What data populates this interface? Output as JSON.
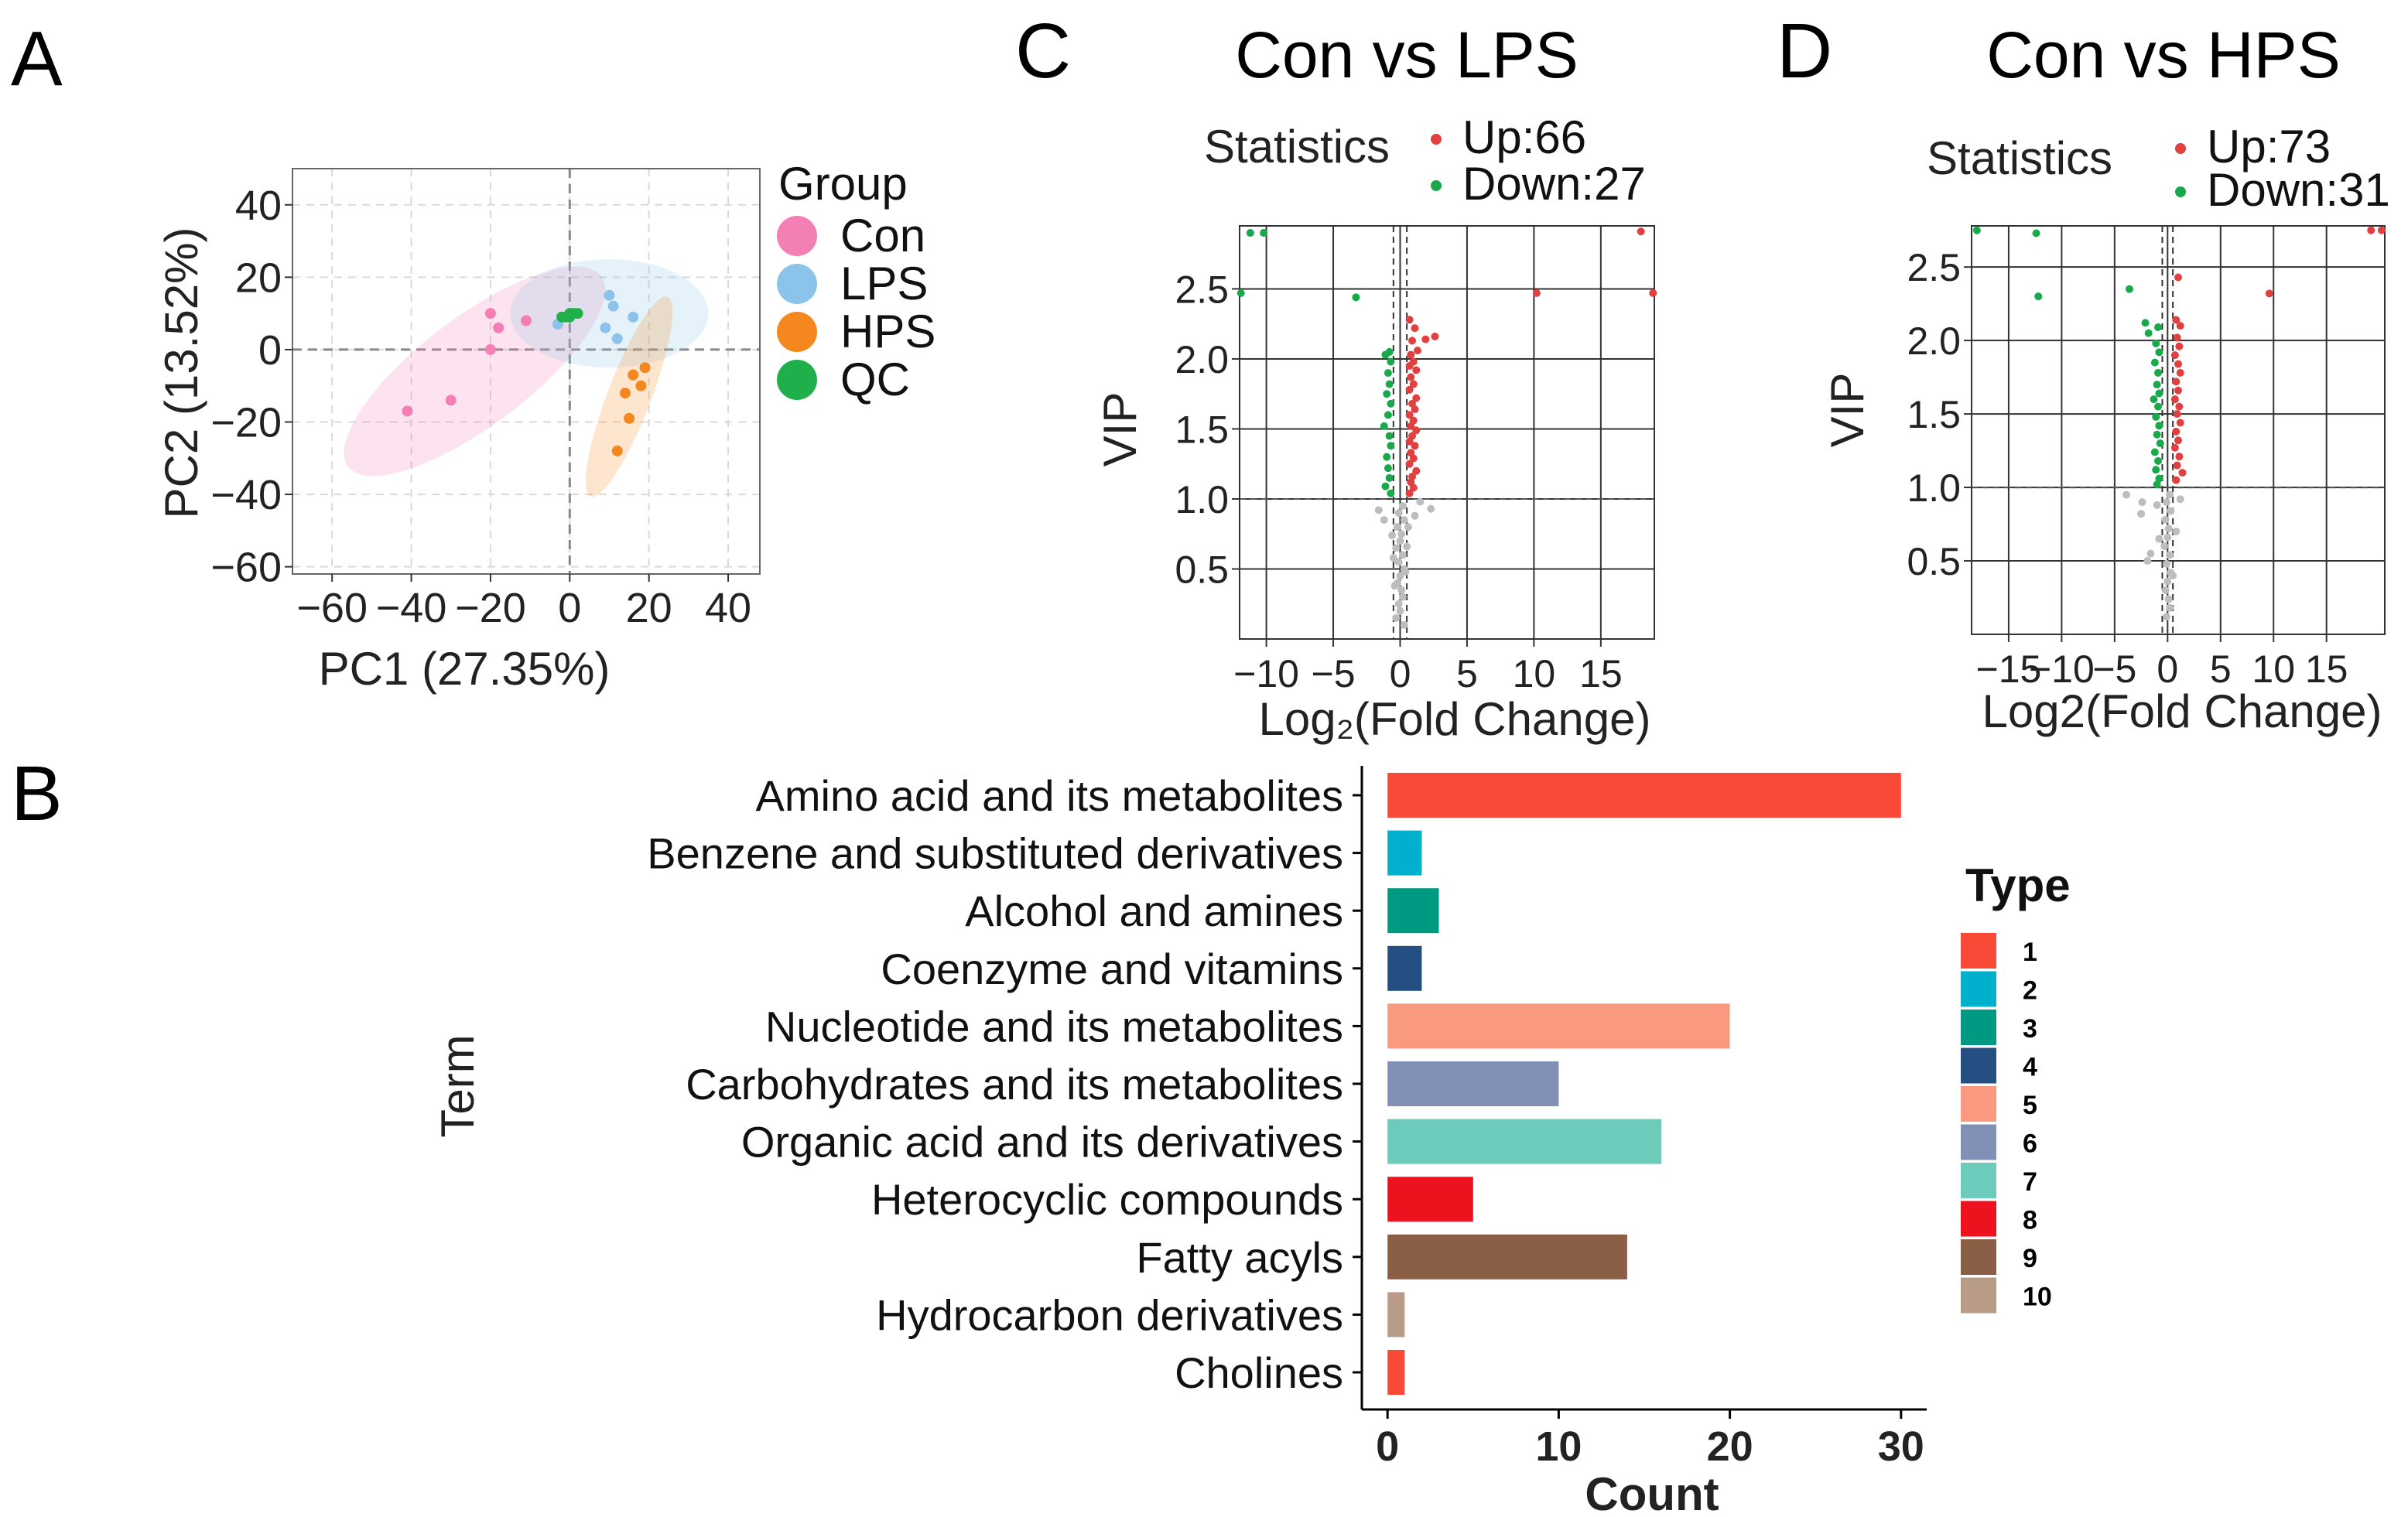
{
  "figure": {
    "panel_labels": {
      "a": "A",
      "b": "B",
      "c": "C",
      "d": "D"
    }
  },
  "colors": {
    "con": "#f37fb5",
    "lps": "#8cc3ea",
    "hps": "#f5871f",
    "qc": "#1fb04b",
    "up": "#e0403f",
    "down": "#1aa94a",
    "ns": "#bdbdbd"
  },
  "chart_data": [
    {
      "id": "pca",
      "type": "scatter",
      "xlabel": "PC1  (27.35%)",
      "ylabel": "PC2  (13.52%)",
      "xlim": [
        -70,
        48
      ],
      "ylim": [
        -62,
        50
      ],
      "xticks": [
        -60,
        -40,
        -20,
        0,
        20,
        40
      ],
      "xtick_labels": [
        "−60",
        "−40",
        "−20",
        "0",
        "20",
        "40"
      ],
      "yticks": [
        40,
        20,
        0,
        -20,
        -40,
        -60
      ],
      "ytick_labels": [
        "40",
        "20",
        "0",
        "−20",
        "−40",
        "−60"
      ],
      "legend": {
        "title": "Group",
        "position": "right",
        "entries": [
          {
            "label": "Con",
            "color": "#f37fb5"
          },
          {
            "label": "LPS",
            "color": "#8cc3ea"
          },
          {
            "label": "HPS",
            "color": "#f5871f"
          },
          {
            "label": "QC",
            "color": "#1fb04b"
          }
        ]
      },
      "ellipses": [
        {
          "group": "Con",
          "cx": -24,
          "cy": -6,
          "rx": 40,
          "ry": 15,
          "angle_deg": 37,
          "color": "#f37fb5"
        },
        {
          "group": "LPS",
          "cx": 10,
          "cy": 10,
          "rx": 25,
          "ry": 15,
          "angle_deg": 0,
          "color": "#8cc3ea"
        },
        {
          "group": "HPS",
          "cx": 15,
          "cy": -13,
          "rx": 27,
          "ry": 6,
          "angle_deg": 69,
          "color": "#f5871f"
        }
      ],
      "series": [
        {
          "name": "Con",
          "color": "#f37fb5",
          "points": [
            [
              -20,
              10
            ],
            [
              -18,
              6
            ],
            [
              -11,
              8
            ],
            [
              -20,
              0
            ],
            [
              -30,
              -14
            ],
            [
              -41,
              -17
            ]
          ]
        },
        {
          "name": "LPS",
          "color": "#8cc3ea",
          "points": [
            [
              10,
              15
            ],
            [
              11,
              12
            ],
            [
              16,
              9
            ],
            [
              -3,
              7
            ],
            [
              9,
              6
            ],
            [
              12,
              3
            ]
          ]
        },
        {
          "name": "HPS",
          "color": "#f5871f",
          "points": [
            [
              19,
              -5
            ],
            [
              16,
              -7
            ],
            [
              18,
              -10
            ],
            [
              14,
              -12
            ],
            [
              15,
              -19
            ],
            [
              12,
              -28
            ]
          ]
        },
        {
          "name": "QC",
          "color": "#1fb04b",
          "points": [
            [
              -1,
              9
            ],
            [
              0,
              10
            ],
            [
              1,
              10
            ],
            [
              -2,
              9
            ],
            [
              0,
              9
            ],
            [
              2,
              10
            ]
          ]
        }
      ]
    },
    {
      "id": "volcano_lps",
      "type": "scatter",
      "title": "Con vs LPS",
      "xlabel": "Log₂(Fold  Change)",
      "ylabel": "VIP",
      "xlim": [
        -12,
        19
      ],
      "ylim": [
        0,
        2.95
      ],
      "xticks": [
        -10,
        -5,
        0,
        5,
        10,
        15
      ],
      "xtick_labels": [
        "−10",
        "−5",
        "0",
        "5",
        "10",
        "15"
      ],
      "yticks": [
        0.5,
        1.0,
        1.5,
        2.0,
        2.5
      ],
      "ytick_labels": [
        "0.5",
        "1.0",
        "1.5",
        "2.0",
        "2.5"
      ],
      "thresholds": {
        "vip": 1.0,
        "log2fc": [
          -0.5,
          0.5
        ]
      },
      "legend": {
        "title": "Statistics",
        "position": "top",
        "entries": [
          {
            "label": "Up:66",
            "color": "#e0403f"
          },
          {
            "label": "Down:27",
            "color": "#1aa94a"
          }
        ]
      },
      "series": [
        {
          "name": "Up",
          "color": "#e0403f",
          "points": [
            [
              18,
              2.91
            ],
            [
              18.9,
              2.47
            ],
            [
              10.2,
              2.47
            ],
            [
              0.7,
              2.28
            ],
            [
              1.1,
              2.22
            ],
            [
              2.6,
              2.16
            ],
            [
              1.9,
              2.14
            ],
            [
              0.9,
              2.13
            ],
            [
              1.3,
              2.06
            ],
            [
              0.8,
              2.03
            ],
            [
              1.0,
              1.98
            ],
            [
              0.7,
              1.95
            ],
            [
              1.2,
              1.92
            ],
            [
              0.8,
              1.87
            ],
            [
              1.0,
              1.82
            ],
            [
              0.7,
              1.78
            ],
            [
              1.2,
              1.72
            ],
            [
              0.9,
              1.68
            ],
            [
              1.1,
              1.64
            ],
            [
              0.7,
              1.6
            ],
            [
              1.0,
              1.56
            ],
            [
              0.8,
              1.52
            ],
            [
              1.2,
              1.49
            ],
            [
              0.9,
              1.45
            ],
            [
              0.7,
              1.41
            ],
            [
              1.1,
              1.38
            ],
            [
              0.8,
              1.33
            ],
            [
              1.0,
              1.29
            ],
            [
              0.7,
              1.25
            ],
            [
              1.2,
              1.2
            ],
            [
              0.9,
              1.16
            ],
            [
              0.8,
              1.12
            ],
            [
              1.0,
              1.08
            ],
            [
              0.7,
              1.04
            ]
          ]
        },
        {
          "name": "Down",
          "color": "#1aa94a",
          "points": [
            [
              -11.2,
              2.9
            ],
            [
              -10.2,
              2.9
            ],
            [
              -11.9,
              2.47
            ],
            [
              -3.3,
              2.44
            ],
            [
              -0.8,
              2.05
            ],
            [
              -1.1,
              2.03
            ],
            [
              -0.7,
              1.98
            ],
            [
              -0.9,
              1.9
            ],
            [
              -0.8,
              1.82
            ],
            [
              -1.0,
              1.75
            ],
            [
              -0.7,
              1.68
            ],
            [
              -0.9,
              1.6
            ],
            [
              -1.2,
              1.52
            ],
            [
              -0.8,
              1.45
            ],
            [
              -0.7,
              1.38
            ],
            [
              -1.0,
              1.3
            ],
            [
              -0.9,
              1.22
            ],
            [
              -0.8,
              1.15
            ],
            [
              -1.1,
              1.09
            ],
            [
              -0.7,
              1.04
            ]
          ]
        },
        {
          "name": "Not significant",
          "color": "#bdbdbd",
          "points": [
            [
              0.2,
              0.95
            ],
            [
              -0.1,
              0.9
            ],
            [
              0.3,
              0.85
            ],
            [
              -0.2,
              0.8
            ],
            [
              0.1,
              0.75
            ],
            [
              0.0,
              0.7
            ],
            [
              -0.3,
              0.65
            ],
            [
              0.2,
              0.6
            ],
            [
              -0.1,
              0.55
            ],
            [
              0.3,
              0.5
            ],
            [
              0.0,
              0.45
            ],
            [
              -0.2,
              0.4
            ],
            [
              0.1,
              0.35
            ],
            [
              0.2,
              0.3
            ],
            [
              -0.1,
              0.25
            ],
            [
              0.0,
              0.2
            ],
            [
              -0.3,
              0.15
            ],
            [
              0.3,
              0.1
            ],
            [
              1.5,
              0.98
            ],
            [
              2.3,
              0.93
            ],
            [
              -1.6,
              0.92
            ],
            [
              1.1,
              0.88
            ],
            [
              -1.2,
              0.85
            ],
            [
              0.6,
              0.8
            ],
            [
              -0.6,
              0.74
            ],
            [
              0.5,
              0.66
            ],
            [
              -0.5,
              0.58
            ],
            [
              0.4,
              0.48
            ],
            [
              -0.4,
              0.38
            ]
          ]
        }
      ]
    },
    {
      "id": "volcano_hps",
      "type": "scatter",
      "title": "Con vs HPS",
      "xlabel": "Log2(Fold  Change)",
      "ylabel": "VIP",
      "xlim": [
        -18.5,
        20.5
      ],
      "ylim": [
        0,
        2.78
      ],
      "xticks": [
        -15,
        -10,
        -5,
        0,
        5,
        10,
        15
      ],
      "xtick_labels": [
        "−15",
        "−10",
        "−5",
        "0",
        "5",
        "10",
        "15"
      ],
      "yticks": [
        0.5,
        1.0,
        1.5,
        2.0,
        2.5
      ],
      "ytick_labels": [
        "0.5",
        "1.0",
        "1.5",
        "2.0",
        "2.5"
      ],
      "thresholds": {
        "vip": 1.0,
        "log2fc": [
          -0.5,
          0.5
        ]
      },
      "legend": {
        "title": "Statistics",
        "position": "top",
        "entries": [
          {
            "label": "Up:73",
            "color": "#e0403f"
          },
          {
            "label": "Down:31",
            "color": "#1aa94a"
          }
        ]
      },
      "series": [
        {
          "name": "Up",
          "color": "#e0403f",
          "points": [
            [
              19.2,
              2.75
            ],
            [
              20.2,
              2.75
            ],
            [
              9.6,
              2.32
            ],
            [
              1.0,
              2.43
            ],
            [
              0.8,
              2.14
            ],
            [
              1.2,
              2.1
            ],
            [
              0.9,
              2.02
            ],
            [
              1.1,
              1.96
            ],
            [
              0.7,
              1.9
            ],
            [
              1.0,
              1.84
            ],
            [
              1.2,
              1.78
            ],
            [
              0.8,
              1.72
            ],
            [
              1.0,
              1.66
            ],
            [
              0.7,
              1.6
            ],
            [
              1.1,
              1.55
            ],
            [
              0.9,
              1.5
            ],
            [
              1.2,
              1.44
            ],
            [
              0.8,
              1.38
            ],
            [
              1.0,
              1.32
            ],
            [
              0.7,
              1.27
            ],
            [
              1.1,
              1.21
            ],
            [
              0.9,
              1.15
            ],
            [
              1.4,
              1.1
            ],
            [
              0.8,
              1.05
            ]
          ]
        },
        {
          "name": "Down",
          "color": "#1aa94a",
          "points": [
            [
              -18.0,
              2.75
            ],
            [
              -12.4,
              2.73
            ],
            [
              -12.2,
              2.3
            ],
            [
              -3.6,
              2.35
            ],
            [
              -2.1,
              2.12
            ],
            [
              -1.8,
              2.05
            ],
            [
              -0.9,
              2.09
            ],
            [
              -1.1,
              1.98
            ],
            [
              -0.8,
              1.92
            ],
            [
              -1.2,
              1.85
            ],
            [
              -0.9,
              1.78
            ],
            [
              -1.0,
              1.7
            ],
            [
              -0.8,
              1.64
            ],
            [
              -1.3,
              1.6
            ],
            [
              -0.9,
              1.55
            ],
            [
              -1.1,
              1.48
            ],
            [
              -0.8,
              1.42
            ],
            [
              -1.0,
              1.36
            ],
            [
              -0.7,
              1.3
            ],
            [
              -1.2,
              1.24
            ],
            [
              -0.9,
              1.18
            ],
            [
              -1.1,
              1.12
            ],
            [
              -0.8,
              1.06
            ],
            [
              -1.0,
              1.02
            ]
          ]
        },
        {
          "name": "Not significant",
          "color": "#bdbdbd",
          "points": [
            [
              -3.9,
              0.95
            ],
            [
              -2.4,
              0.9
            ],
            [
              -2.5,
              0.82
            ],
            [
              -1.6,
              0.55
            ],
            [
              -1.9,
              0.5
            ],
            [
              0.2,
              0.95
            ],
            [
              -0.1,
              0.9
            ],
            [
              0.3,
              0.84
            ],
            [
              -0.2,
              0.78
            ],
            [
              0.1,
              0.72
            ],
            [
              0.0,
              0.66
            ],
            [
              -0.3,
              0.6
            ],
            [
              0.2,
              0.54
            ],
            [
              -0.1,
              0.48
            ],
            [
              0.3,
              0.42
            ],
            [
              0.0,
              0.36
            ],
            [
              -0.2,
              0.3
            ],
            [
              0.1,
              0.24
            ],
            [
              0.2,
              0.18
            ],
            [
              -0.1,
              0.12
            ],
            [
              1.2,
              0.92
            ],
            [
              -1.0,
              0.88
            ],
            [
              0.8,
              0.7
            ],
            [
              -0.8,
              0.65
            ],
            [
              0.5,
              0.4
            ]
          ]
        }
      ]
    },
    {
      "id": "classification",
      "type": "bar",
      "orientation": "horizontal",
      "xlabel": "Count",
      "ylabel": "Term",
      "xlim": [
        -1.5,
        31.5
      ],
      "xticks": [
        0,
        10,
        20,
        30
      ],
      "xtick_labels": [
        "0",
        "10",
        "20",
        "30"
      ],
      "categories": [
        "Amino acid and its metabolites",
        "Benzene and substituted derivatives",
        "Alcohol and amines",
        "Coenzyme and vitamins",
        "Nucleotide and its metabolites",
        "Carbohydrates and its metabolites",
        "Organic acid and its derivatives",
        "Heterocyclic compounds",
        "Fatty acyls",
        "Hydrocarbon derivatives",
        "Cholines"
      ],
      "values": [
        30,
        2,
        3,
        2,
        20,
        10,
        16,
        5,
        14,
        1,
        1
      ],
      "types": [
        "1",
        "2",
        "3",
        "4",
        "5",
        "6",
        "7",
        "8",
        "9",
        "10",
        "1"
      ],
      "legend": {
        "title": "Type",
        "position": "right",
        "entries": [
          {
            "label": "1",
            "color": "#f84a37"
          },
          {
            "label": "2",
            "color": "#00b0cc"
          },
          {
            "label": "3",
            "color": "#009a82"
          },
          {
            "label": "4",
            "color": "#254f82"
          },
          {
            "label": "5",
            "color": "#f99a80"
          },
          {
            "label": "6",
            "color": "#8190b5"
          },
          {
            "label": "7",
            "color": "#6dcbbb"
          },
          {
            "label": "8",
            "color": "#ee121f"
          },
          {
            "label": "9",
            "color": "#8a5f46"
          },
          {
            "label": "10",
            "color": "#b89c87"
          }
        ]
      }
    }
  ]
}
